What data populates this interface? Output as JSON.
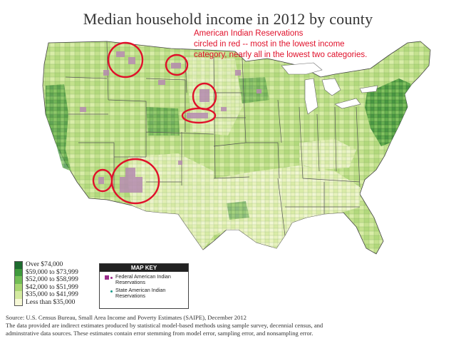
{
  "title": "Median household income in 2012 by county",
  "annotation": {
    "lines": [
      "American Indian Reservations",
      "circled in red -- most in the lowest income",
      "category, nearly all in the lowest two categories."
    ],
    "color": "#e0102a"
  },
  "legend": {
    "items": [
      {
        "label": "Over $74,000",
        "color": "#1d6b2e"
      },
      {
        "label": "$59,000 to $73,999",
        "color": "#3f9a3c"
      },
      {
        "label": "$52,000 to $58,999",
        "color": "#72bd55"
      },
      {
        "label": "$42,000 to $51,999",
        "color": "#a9d673"
      },
      {
        "label": "$35,000 to $41,999",
        "color": "#d4eaa0"
      },
      {
        "label": "Less than $35,000",
        "color": "#f6f8d6"
      }
    ]
  },
  "map_key": {
    "title": "MAP KEY",
    "items": [
      {
        "label": "Federal American Indian Reservations",
        "color": "#9b2d8c"
      },
      {
        "label": "State American Indian Reservations",
        "color": "#1a9a8a"
      }
    ]
  },
  "source": {
    "lines": [
      "Source: U.S. Census Bureau, Small Area Income and Poverty Estimates (SAIPE), December 2012",
      "The data provided are indirect estimates produced by statistical model-based methods using sample survey, decennial census, and",
      "adminstrative data sources. These estimates contain error stemming from model error, sampling error, and nonsampling error."
    ]
  },
  "colors": {
    "reservation_fill": "#b58bb0",
    "circle_stroke": "#e0102a",
    "state_border": "#555555",
    "great_lakes": "#ffffff"
  }
}
